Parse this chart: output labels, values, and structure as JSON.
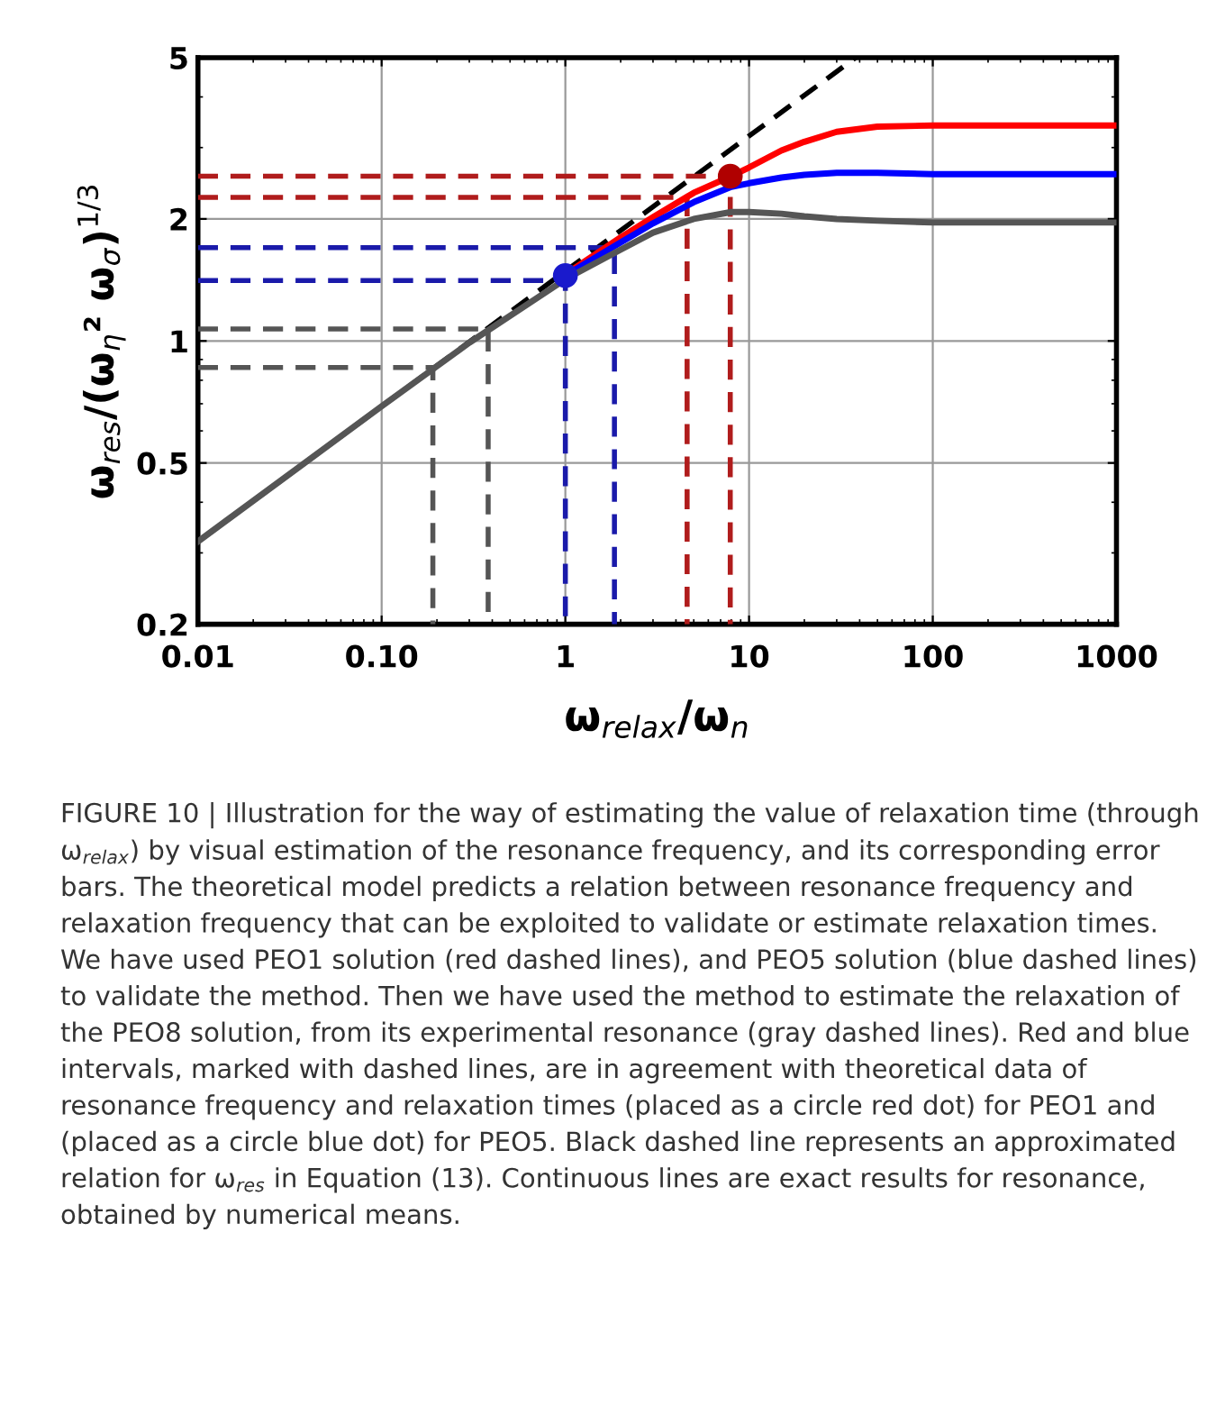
{
  "chart_data": {
    "type": "line",
    "xlabel": "ω$_{relax}$/ω$_{n}$",
    "ylabel": "ω$_{res}$/(ω$_{η}$² ω$_{σ}$)$^{1/3}$",
    "log": "xy",
    "xlim": [
      0.01,
      1000
    ],
    "ylim": [
      0.2,
      5
    ],
    "xticks": [
      0.01,
      {
        "value": 0.1,
        "label": "0.10"
      },
      1,
      10,
      100,
      1000
    ],
    "yticks": [
      0.2,
      0.5,
      1,
      2,
      5
    ],
    "grid": true,
    "series": [
      {
        "color": "#ff0000",
        "line_style": "solid",
        "x": [
          1,
          2,
          3,
          5,
          8,
          10,
          15,
          20,
          30,
          50,
          100,
          300,
          1000
        ],
        "values": [
          1.46,
          1.8,
          2.02,
          2.32,
          2.55,
          2.68,
          2.95,
          3.1,
          3.28,
          3.38,
          3.4,
          3.4,
          3.4
        ]
      },
      {
        "color": "#0000ff",
        "line_style": "solid",
        "x": [
          1,
          2,
          3,
          5,
          8,
          10,
          15,
          20,
          30,
          50,
          100,
          300,
          1000
        ],
        "values": [
          1.45,
          1.75,
          1.95,
          2.2,
          2.4,
          2.45,
          2.53,
          2.57,
          2.6,
          2.6,
          2.58,
          2.58,
          2.58
        ]
      },
      {
        "color": "#555555",
        "line_style": "solid",
        "x": [
          0.01,
          0.1,
          0.3,
          1,
          2,
          3,
          5,
          8,
          10,
          15,
          20,
          30,
          50,
          100,
          300,
          1000
        ],
        "values": [
          0.32,
          0.69,
          0.99,
          1.42,
          1.68,
          1.85,
          2.0,
          2.08,
          2.08,
          2.06,
          2.03,
          2.0,
          1.98,
          1.96,
          1.96,
          1.96
        ]
      },
      {
        "color": "#000000",
        "line_style": "dashed",
        "x": [
          0.01,
          38
        ],
        "values": [
          0.32,
          5
        ]
      },
      {
        "color": "#b01c1c",
        "line_style": "dashed",
        "x": [
          0.01,
          7.9,
          7.9
        ],
        "values": [
          2.55,
          2.55,
          0.2
        ]
      },
      {
        "color": "#b01c1c",
        "line_style": "dashed",
        "x": [
          0.01,
          4.6,
          4.6
        ],
        "values": [
          2.26,
          2.26,
          0.2
        ]
      },
      {
        "color": "#1a1aaa",
        "line_style": "dashed",
        "x": [
          0.01,
          1.85,
          1.85
        ],
        "values": [
          1.7,
          1.7,
          0.2
        ]
      },
      {
        "color": "#1a1aaa",
        "line_style": "dashed",
        "x": [
          0.01,
          1,
          1
        ],
        "values": [
          1.41,
          1.41,
          0.2
        ]
      },
      {
        "color": "#555555",
        "line_style": "dashed",
        "x": [
          0.01,
          0.38,
          0.38
        ],
        "values": [
          1.07,
          1.07,
          0.2
        ]
      },
      {
        "color": "#555555",
        "line_style": "dashed",
        "x": [
          0.01,
          0.19,
          0.19
        ],
        "values": [
          0.86,
          0.86,
          0.2
        ]
      },
      {
        "type": "scatter",
        "color": "#b00000",
        "marker": "circle",
        "x": [
          7.9
        ],
        "values": [
          2.55
        ]
      },
      {
        "type": "scatter",
        "color": "#1a1acc",
        "marker": "circle",
        "x": [
          1
        ],
        "values": [
          1.45
        ]
      }
    ],
    "annotations": [
      "FIGURE 10 | Illustration for the way of estimating the value of relaxation time (through ω$_{relax}$) by visual estimation of the resonance frequency, and its corresponding error bars. The theoretical model predicts a relation between resonance frequency and relaxation frequency that can be exploited to validate or estimate relaxation times. We have used PEO1 solution (red dashed lines), and PEO5 solution (blue dashed lines) to validate the method. Then we have used the method to estimate the relaxation of the PEO8 solution, from its experimental resonance (gray dashed lines). Red and blue intervals, marked with dashed lines, are in agreement with theoretical data of resonance frequency and relaxation times (placed as a circle red dot) for PEO1 and (placed as a circle blue dot) for PEO5. Black dashed line represents an approximated relation for ω$_{res}$ in Equation (13). Continuous lines are exact results for resonance, obtained by numerical means."
    ]
  }
}
